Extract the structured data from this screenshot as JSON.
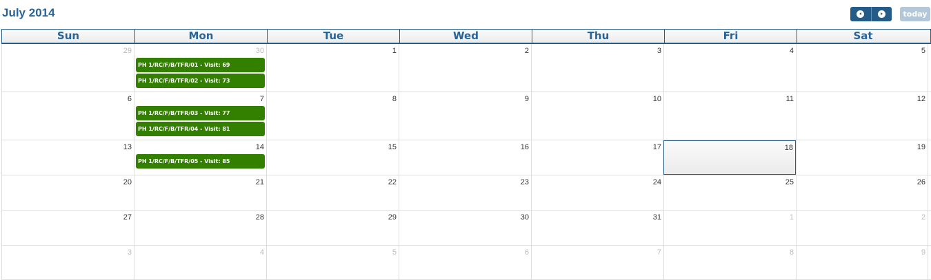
{
  "header": {
    "title": "July 2014",
    "prev_icon": "chevron-left-circle-icon",
    "next_icon": "chevron-right-circle-icon",
    "today_label": "today"
  },
  "colors": {
    "accent": "#245b87",
    "event": "#338000"
  },
  "day_names": [
    "Sun",
    "Mon",
    "Tue",
    "Wed",
    "Thu",
    "Fri",
    "Sat"
  ],
  "weeks": [
    [
      {
        "d": "29",
        "o": 1
      },
      {
        "d": "30",
        "o": 1,
        "ev": [
          "PH 1/RC/F/B/TFR/01 - Visit: 69",
          "PH 1/RC/F/B/TFR/02 - Visit: 73"
        ]
      },
      {
        "d": "1"
      },
      {
        "d": "2"
      },
      {
        "d": "3"
      },
      {
        "d": "4"
      },
      {
        "d": "5"
      }
    ],
    [
      {
        "d": "6"
      },
      {
        "d": "7",
        "ev": [
          "PH 1/RC/F/B/TFR/03 - Visit: 77",
          "PH 1/RC/F/B/TFR/04 - Visit: 81"
        ]
      },
      {
        "d": "8"
      },
      {
        "d": "9"
      },
      {
        "d": "10"
      },
      {
        "d": "11"
      },
      {
        "d": "12"
      }
    ],
    [
      {
        "d": "13"
      },
      {
        "d": "14",
        "ev": [
          "PH 1/RC/F/B/TFR/05 - Visit: 85"
        ]
      },
      {
        "d": "15"
      },
      {
        "d": "16"
      },
      {
        "d": "17"
      },
      {
        "d": "18",
        "today": 1
      },
      {
        "d": "19"
      }
    ],
    [
      {
        "d": "20"
      },
      {
        "d": "21"
      },
      {
        "d": "22"
      },
      {
        "d": "23"
      },
      {
        "d": "24"
      },
      {
        "d": "25"
      },
      {
        "d": "26"
      }
    ],
    [
      {
        "d": "27"
      },
      {
        "d": "28"
      },
      {
        "d": "29"
      },
      {
        "d": "30"
      },
      {
        "d": "31"
      },
      {
        "d": "1",
        "o": 1
      },
      {
        "d": "2",
        "o": 1
      }
    ],
    [
      {
        "d": "3",
        "o": 1
      },
      {
        "d": "4",
        "o": 1
      },
      {
        "d": "5",
        "o": 1
      },
      {
        "d": "6",
        "o": 1
      },
      {
        "d": "7",
        "o": 1
      },
      {
        "d": "8",
        "o": 1
      },
      {
        "d": "9",
        "o": 1
      }
    ]
  ]
}
